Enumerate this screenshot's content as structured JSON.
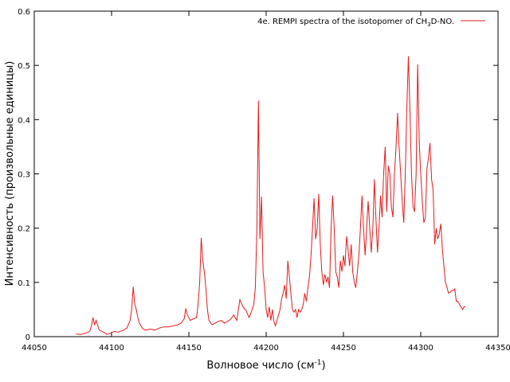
{
  "chart_data": {
    "type": "line",
    "xlabel": "Волновое число (см",
    "xlabel_sup": "-1",
    "xlabel_end": ")",
    "ylabel": "Интенсивность (произвольные единицы)",
    "xlim": [
      44050,
      44350
    ],
    "ylim": [
      0,
      0.6
    ],
    "xticks": [
      "44050",
      "44100",
      "44150",
      "44200",
      "44250",
      "44300",
      "44350"
    ],
    "yticks": [
      "0",
      "0.1",
      "0.2",
      "0.3",
      "0.4",
      "0.5",
      "0.6"
    ],
    "grid": false,
    "legend_position": "top-right",
    "series": [
      {
        "name_pre": "4e. REMPI spectra of the isotopomer of CH",
        "name_sub": "3",
        "name_post": "D-NO.",
        "color": "#e41a1c",
        "x": [
          44077,
          44080,
          44083,
          44086,
          44087,
          44088,
          44089,
          44090,
          44092,
          44095,
          44097,
          44100,
          44102,
          44104,
          44106,
          44108,
          44110,
          44112,
          44113,
          44114,
          44115,
          44116,
          44117,
          44118,
          44120,
          44122,
          44125,
          44128,
          44131,
          44134,
          44137,
          44140,
          44143,
          44145,
          44147,
          44148,
          44149,
          44151,
          44153,
          44155,
          44156,
          44157,
          44158,
          44159,
          44160,
          44161,
          44162,
          44163,
          44165,
          44167,
          44169,
          44171,
          44173,
          44175,
          44177,
          44179,
          44181,
          44183,
          44185,
          44187,
          44189,
          44191,
          44192,
          44193,
          44194,
          44195,
          44196,
          44197,
          44198,
          44199,
          44200,
          44201,
          44202,
          44203,
          44204,
          44205,
          44206,
          44207,
          44208,
          44209,
          44210,
          44211,
          44212,
          44213,
          44214,
          44215,
          44216,
          44217,
          44218,
          44219,
          44220,
          44221,
          44222,
          44223,
          44224,
          44225,
          44226,
          44227,
          44228,
          44229,
          44230,
          44231,
          44232,
          44233,
          44234,
          44235,
          44236,
          44237,
          44238,
          44239,
          44240,
          44241,
          44242,
          44243,
          44244,
          44245,
          44246,
          44247,
          44248,
          44249,
          44250,
          44251,
          44252,
          44253,
          44254,
          44255,
          44256,
          44257,
          44258,
          44259,
          44260,
          44261,
          44262,
          44263,
          44264,
          44265,
          44266,
          44267,
          44268,
          44269,
          44270,
          44271,
          44272,
          44273,
          44274,
          44275,
          44276,
          44277,
          44278,
          44279,
          44280,
          44281,
          44282,
          44283,
          44284,
          44285,
          44286,
          44287,
          44288,
          44289,
          44290,
          44291,
          44292,
          44293,
          44294,
          44295,
          44296,
          44297,
          44298,
          44299,
          44300,
          44301,
          44302,
          44303,
          44304,
          44305,
          44306,
          44307,
          44308,
          44309,
          44310,
          44311,
          44312,
          44313,
          44314,
          44315,
          44316,
          44317,
          44318,
          44319,
          44320,
          44321,
          44322,
          44323,
          44324,
          44325,
          44326,
          44327,
          44328,
          44329
        ],
        "y": [
          0.005,
          0.004,
          0.006,
          0.01,
          0.02,
          0.035,
          0.022,
          0.03,
          0.012,
          0.008,
          0.004,
          0.007,
          0.01,
          0.008,
          0.01,
          0.012,
          0.016,
          0.03,
          0.05,
          0.092,
          0.06,
          0.05,
          0.035,
          0.025,
          0.015,
          0.012,
          0.014,
          0.012,
          0.016,
          0.018,
          0.018,
          0.02,
          0.022,
          0.025,
          0.033,
          0.052,
          0.04,
          0.03,
          0.033,
          0.035,
          0.06,
          0.1,
          0.182,
          0.14,
          0.12,
          0.09,
          0.05,
          0.03,
          0.022,
          0.025,
          0.028,
          0.03,
          0.025,
          0.028,
          0.032,
          0.04,
          0.03,
          0.068,
          0.055,
          0.048,
          0.035,
          0.05,
          0.06,
          0.09,
          0.2,
          0.435,
          0.18,
          0.258,
          0.12,
          0.09,
          0.05,
          0.035,
          0.055,
          0.03,
          0.05,
          0.028,
          0.02,
          0.03,
          0.04,
          0.05,
          0.07,
          0.08,
          0.095,
          0.07,
          0.14,
          0.11,
          0.08,
          0.05,
          0.045,
          0.05,
          0.035,
          0.05,
          0.045,
          0.05,
          0.06,
          0.08,
          0.065,
          0.09,
          0.11,
          0.15,
          0.2,
          0.255,
          0.18,
          0.2,
          0.263,
          0.17,
          0.12,
          0.095,
          0.115,
          0.1,
          0.11,
          0.09,
          0.2,
          0.26,
          0.2,
          0.12,
          0.11,
          0.09,
          0.14,
          0.12,
          0.15,
          0.13,
          0.185,
          0.16,
          0.13,
          0.17,
          0.12,
          0.1,
          0.09,
          0.12,
          0.15,
          0.2,
          0.26,
          0.2,
          0.15,
          0.2,
          0.25,
          0.2,
          0.155,
          0.2,
          0.29,
          0.22,
          0.155,
          0.2,
          0.26,
          0.22,
          0.3,
          0.35,
          0.23,
          0.315,
          0.3,
          0.24,
          0.22,
          0.3,
          0.35,
          0.412,
          0.35,
          0.3,
          0.25,
          0.21,
          0.3,
          0.42,
          0.517,
          0.42,
          0.3,
          0.24,
          0.23,
          0.3,
          0.502,
          0.36,
          0.3,
          0.25,
          0.21,
          0.22,
          0.31,
          0.33,
          0.357,
          0.29,
          0.27,
          0.17,
          0.2,
          0.18,
          0.19,
          0.208,
          0.16,
          0.13,
          0.1,
          0.09,
          0.08,
          0.082,
          0.085,
          0.085,
          0.088,
          0.065,
          0.065,
          0.06,
          0.055,
          0.05,
          0.055,
          0.055
        ]
      }
    ]
  }
}
